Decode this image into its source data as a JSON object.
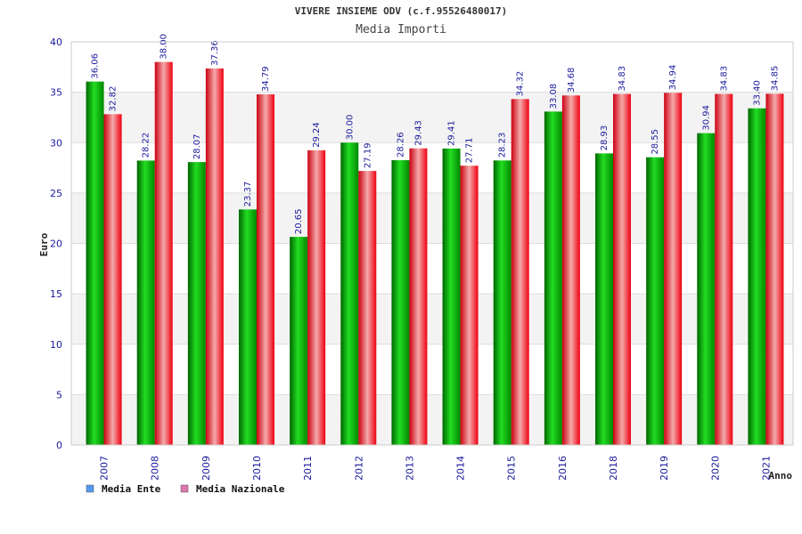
{
  "chart_data": {
    "type": "bar",
    "title": "VIVERE INSIEME ODV (c.f.95526480017)",
    "subtitle": "Media Importi",
    "ylabel": "Euro",
    "xlabel": "Anno",
    "ylim": [
      0,
      40
    ],
    "yticks": [
      0,
      5,
      10,
      15,
      20,
      25,
      30,
      35,
      40
    ],
    "grid": true,
    "legend_position": "bottom-left",
    "categories": [
      "2007",
      "2008",
      "2009",
      "2010",
      "2011",
      "2012",
      "2013",
      "2014",
      "2015",
      "2016",
      "2018",
      "2019",
      "2020",
      "2021"
    ],
    "series": [
      {
        "name": "Media Ente",
        "color": "#00aa00",
        "legend_color": "#5599ee",
        "values": [
          36.06,
          28.22,
          28.07,
          23.37,
          20.65,
          30.0,
          28.26,
          29.41,
          28.23,
          33.08,
          28.93,
          28.55,
          30.94,
          33.4
        ],
        "labels": [
          "36.06",
          "28.22",
          "28.07",
          "23.37",
          "20.65",
          "30.00",
          "28.26",
          "29.41",
          "28.23",
          "33.08",
          "28.93",
          "28.55",
          "30.94",
          "33.40"
        ]
      },
      {
        "name": "Media Nazionale",
        "color": "#ee1122",
        "legend_color": "#dd77aa",
        "values": [
          32.82,
          38.0,
          37.36,
          34.79,
          29.24,
          27.19,
          29.43,
          27.71,
          34.32,
          34.68,
          34.83,
          34.94,
          34.83,
          34.85
        ],
        "labels": [
          "32.82",
          "38.00",
          "37.36",
          "34.79",
          "29.24",
          "27.19",
          "29.43",
          "27.71",
          "34.32",
          "34.68",
          "34.83",
          "34.94",
          "34.83",
          "34.85"
        ]
      }
    ]
  }
}
